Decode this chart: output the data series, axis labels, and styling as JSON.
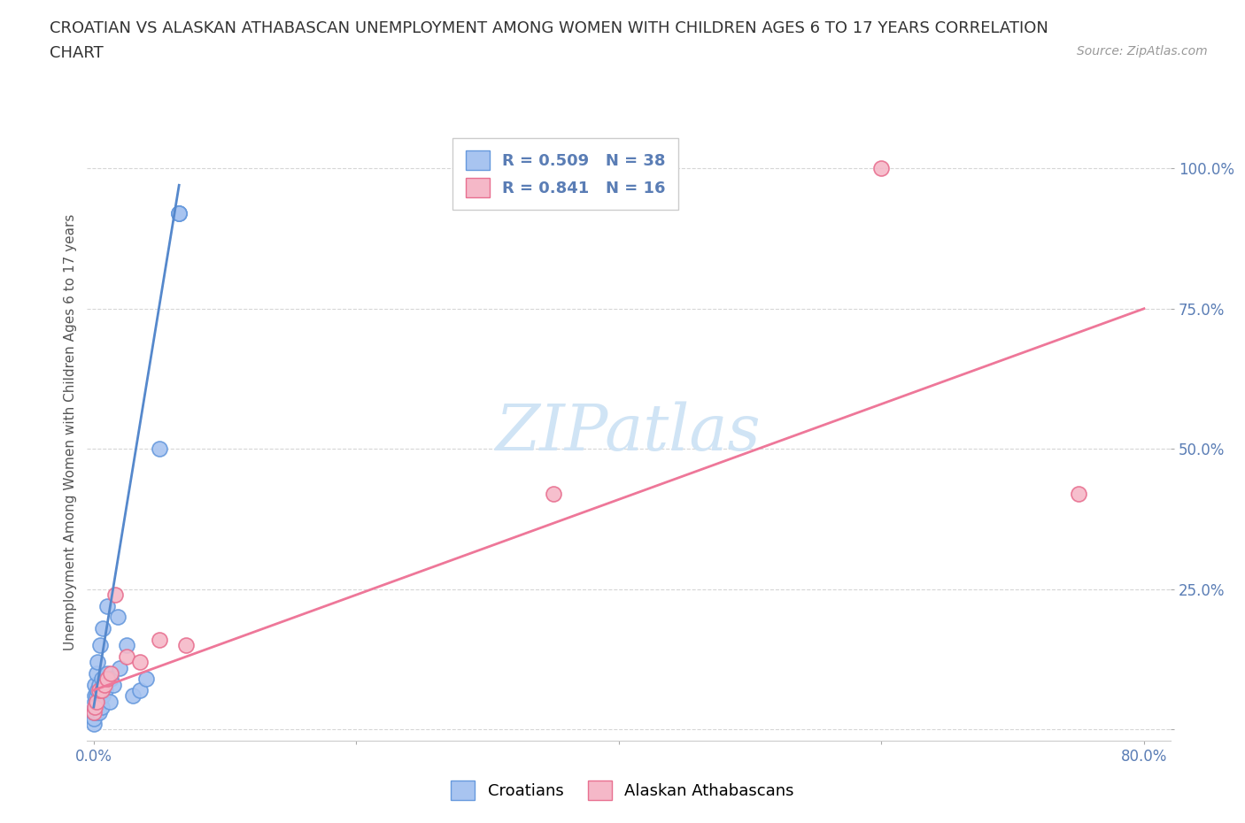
{
  "title_line1": "CROATIAN VS ALASKAN ATHABASCAN UNEMPLOYMENT AMONG WOMEN WITH CHILDREN AGES 6 TO 17 YEARS CORRELATION",
  "title_line2": "CHART",
  "source": "Source: ZipAtlas.com",
  "ylabel": "Unemployment Among Women with Children Ages 6 to 17 years",
  "xlim": [
    -0.005,
    0.82
  ],
  "ylim": [
    -0.02,
    1.08
  ],
  "croatian_R": 0.509,
  "croatian_N": 38,
  "athabascan_R": 0.841,
  "athabascan_N": 16,
  "croatian_color": "#a8c4f0",
  "athabascan_color": "#f5b8c8",
  "croatian_edge_color": "#6699dd",
  "athabascan_edge_color": "#e87090",
  "croatian_line_color": "#5588cc",
  "athabascan_line_color": "#ee7799",
  "watermark_color": "#d0e4f5",
  "background_color": "#ffffff",
  "croatian_x": [
    0.0,
    0.0,
    0.0,
    0.001,
    0.001,
    0.001,
    0.001,
    0.002,
    0.002,
    0.002,
    0.003,
    0.003,
    0.003,
    0.004,
    0.004,
    0.005,
    0.005,
    0.006,
    0.006,
    0.007,
    0.007,
    0.008,
    0.009,
    0.01,
    0.01,
    0.012,
    0.013,
    0.015,
    0.018,
    0.02,
    0.025,
    0.03,
    0.035,
    0.04,
    0.05,
    0.065,
    0.065,
    0.065
  ],
  "croatian_y": [
    0.01,
    0.02,
    0.03,
    0.04,
    0.05,
    0.06,
    0.08,
    0.03,
    0.06,
    0.1,
    0.04,
    0.07,
    0.12,
    0.03,
    0.08,
    0.05,
    0.15,
    0.04,
    0.09,
    0.06,
    0.18,
    0.08,
    0.07,
    0.1,
    0.22,
    0.05,
    0.09,
    0.08,
    0.2,
    0.11,
    0.15,
    0.06,
    0.07,
    0.09,
    0.5,
    0.92,
    0.92,
    0.92
  ],
  "athabascan_x": [
    0.0,
    0.001,
    0.002,
    0.004,
    0.006,
    0.008,
    0.01,
    0.013,
    0.016,
    0.025,
    0.035,
    0.05,
    0.07,
    0.35,
    0.6,
    0.75
  ],
  "athabascan_y": [
    0.03,
    0.04,
    0.05,
    0.07,
    0.07,
    0.08,
    0.09,
    0.1,
    0.24,
    0.13,
    0.12,
    0.16,
    0.15,
    0.42,
    1.0,
    0.42
  ],
  "cro_trend_x": [
    0.0,
    0.065
  ],
  "cro_trend_y": [
    0.04,
    0.97
  ],
  "ath_trend_x": [
    0.0,
    0.8
  ],
  "ath_trend_y": [
    0.07,
    0.75
  ]
}
